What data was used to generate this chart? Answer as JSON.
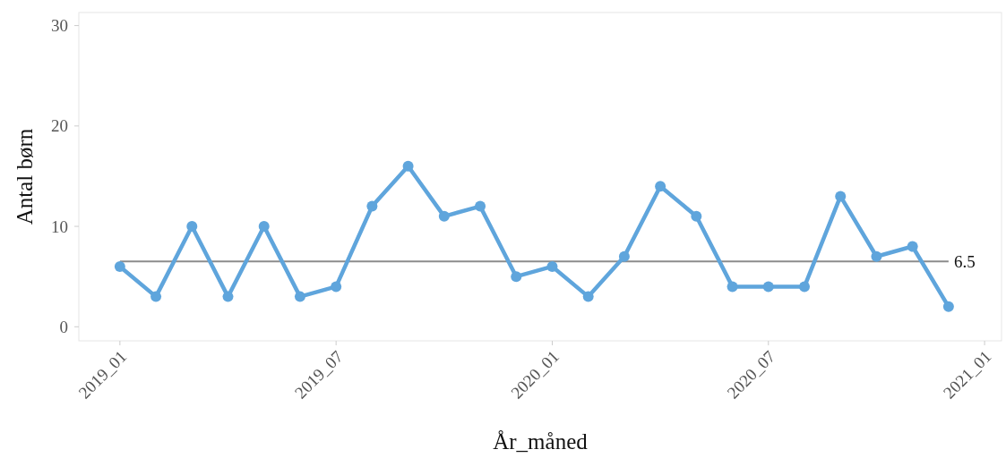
{
  "chart_data": {
    "type": "line",
    "xlabel": "År_måned",
    "ylabel": "Antal børn",
    "categories": [
      "2019_01",
      null,
      null,
      null,
      null,
      null,
      "2019_07",
      null,
      null,
      null,
      null,
      null,
      "2020_01",
      null,
      null,
      null,
      null,
      null,
      "2020_07",
      null,
      null,
      null,
      null,
      null,
      "2021_01"
    ],
    "series": [
      {
        "color": "#5fa5dc",
        "values": [
          6,
          3,
          10,
          3,
          10,
          3,
          4,
          12,
          16,
          11,
          12,
          5,
          6,
          3,
          7,
          14,
          11,
          4,
          4,
          4,
          13,
          7,
          8,
          2,
          null
        ]
      }
    ],
    "ylim": [
      -1.4,
      31.3
    ],
    "yticks": [
      0,
      10,
      20,
      30
    ],
    "ref_lines": [
      {
        "axis": "y",
        "value": 6.5,
        "label": "6.5",
        "color": "#8c8c8c"
      }
    ],
    "grid": false,
    "marker": "circle",
    "line_style": "solid"
  }
}
